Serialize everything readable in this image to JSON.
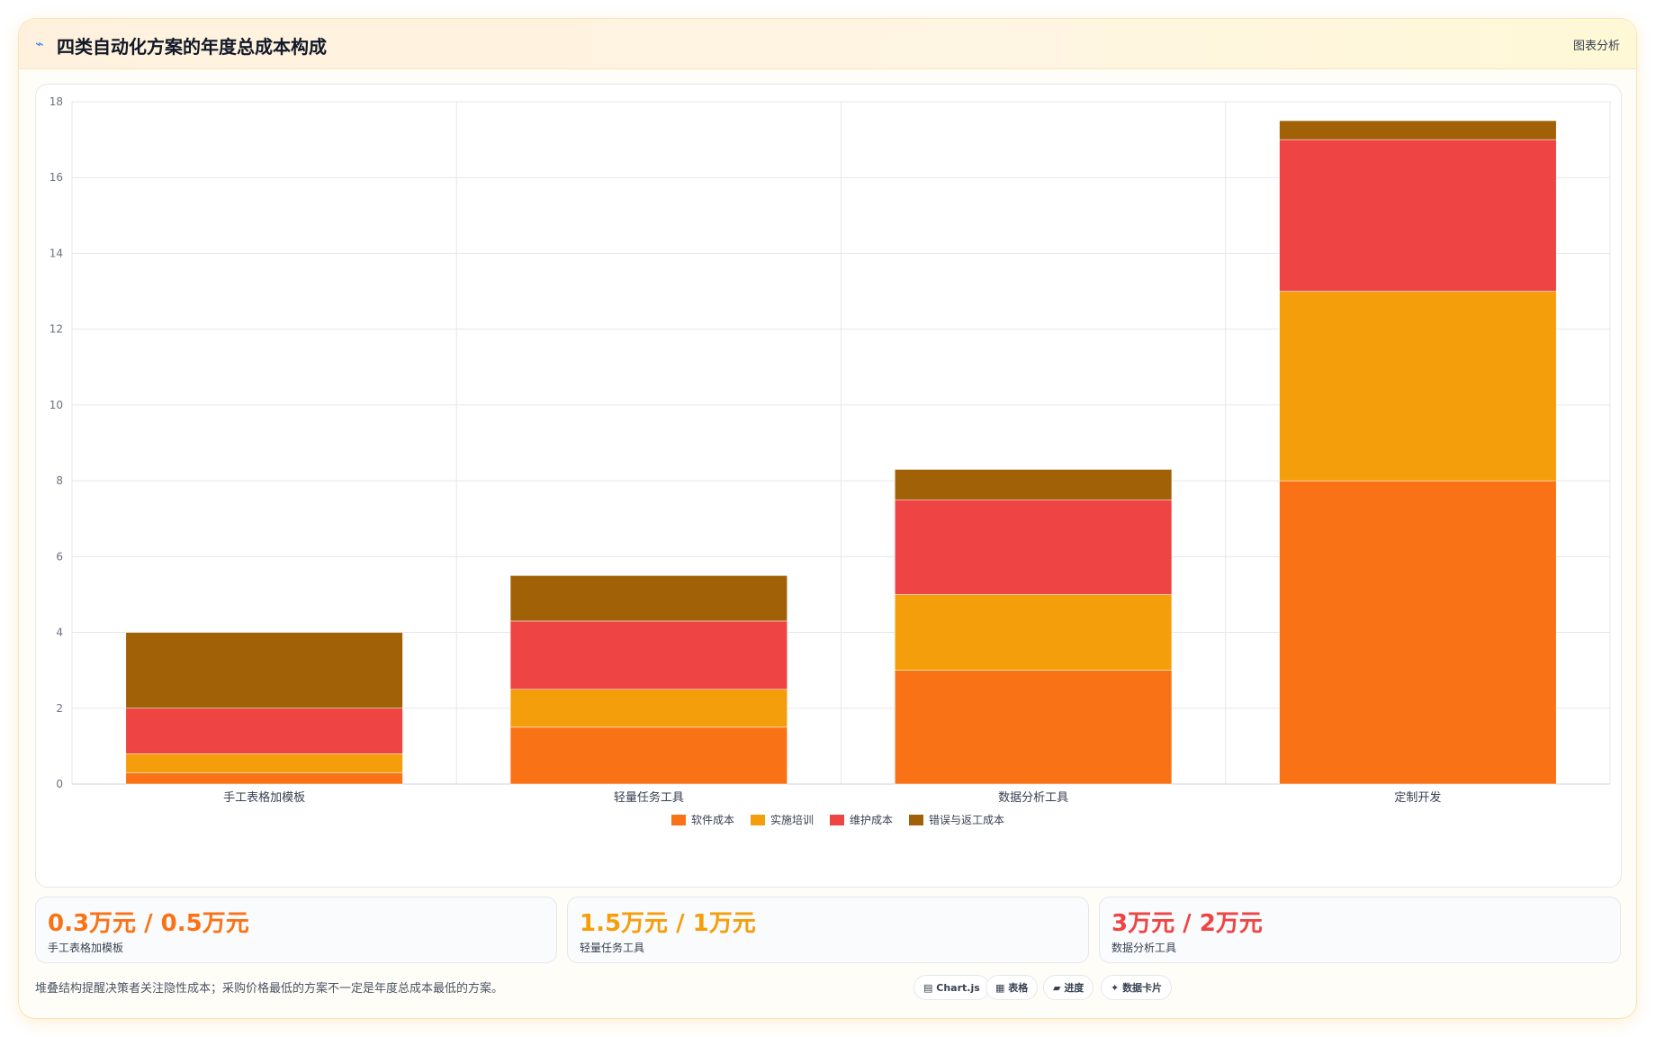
{
  "header": {
    "title": "四类自动化方案的年度总成本构成",
    "action_label": "图表分析"
  },
  "chart_data": {
    "type": "bar",
    "stacked": true,
    "categories": [
      "手工表格加模板",
      "轻量任务工具",
      "数据分析工具",
      "定制开发"
    ],
    "series": [
      {
        "name": "软件成本",
        "color": "#f97316",
        "values": [
          0.3,
          1.5,
          3,
          8
        ]
      },
      {
        "name": "实施培训",
        "color": "#f59e0b",
        "values": [
          0.5,
          1,
          2,
          5
        ]
      },
      {
        "name": "维护成本",
        "color": "#ef4444",
        "values": [
          1.2,
          1.8,
          2.5,
          4
        ]
      },
      {
        "name": "错误与返工成本",
        "color": "#a16207",
        "values": [
          2,
          1.2,
          0.8,
          0.5
        ]
      }
    ],
    "ylim": [
      0,
      18
    ],
    "yticks": [
      0,
      2,
      4,
      6,
      8,
      10,
      12,
      14,
      16,
      18
    ],
    "grid": true,
    "legend_position": "bottom"
  },
  "stats": [
    {
      "value": "0.3万元 / 0.5万元",
      "label": "手工表格加模板",
      "color": "#f97316"
    },
    {
      "value": "1.5万元 / 1万元",
      "label": "轻量任务工具",
      "color": "#f59e0b"
    },
    {
      "value": "3万元 / 2万元",
      "label": "数据分析工具",
      "color": "#ef4444"
    }
  ],
  "footer": {
    "note": "堆叠结构提醒决策者关注隐性成本；采购价格最低的方案不一定是年度总成本最低的方案。",
    "chips": [
      {
        "icon": "chart-icon",
        "glyph": "▤",
        "label": "Chart.js"
      },
      {
        "icon": "table-icon",
        "glyph": "▦",
        "label": "表格"
      },
      {
        "icon": "progress-icon",
        "glyph": "▰",
        "label": "进度"
      },
      {
        "icon": "sparkle-icon",
        "glyph": "✦",
        "label": "数据卡片"
      }
    ]
  }
}
